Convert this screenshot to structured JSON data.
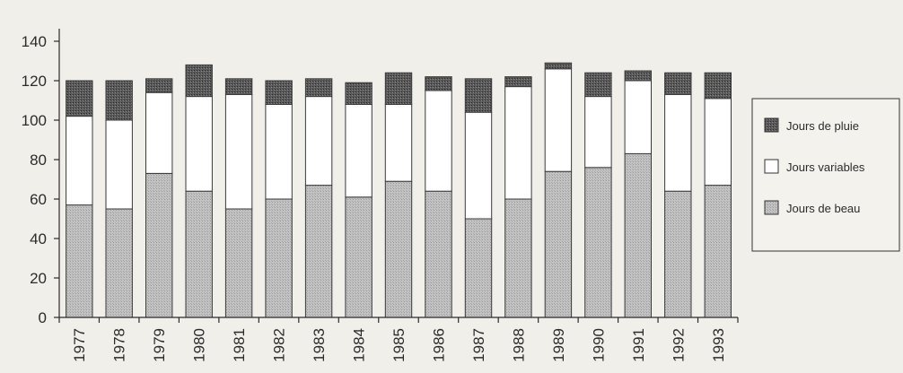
{
  "chart_data": {
    "type": "bar",
    "stacked": true,
    "categories": [
      "1977",
      "1978",
      "1979",
      "1980",
      "1981",
      "1982",
      "1983",
      "1984",
      "1985",
      "1986",
      "1987",
      "1988",
      "1989",
      "1990",
      "1991",
      "1992",
      "1993"
    ],
    "series": [
      {
        "name": "Jours de beau",
        "values": [
          57,
          55,
          73,
          64,
          55,
          60,
          67,
          61,
          69,
          64,
          50,
          60,
          74,
          76,
          83,
          64,
          67
        ],
        "color": "#b5b5b5"
      },
      {
        "name": "Jours variables",
        "values": [
          45,
          45,
          41,
          48,
          58,
          48,
          45,
          47,
          39,
          51,
          54,
          57,
          52,
          36,
          37,
          49,
          44
        ],
        "color": "#ffffff"
      },
      {
        "name": "Jours de pluie",
        "values": [
          18,
          20,
          7,
          16,
          8,
          12,
          9,
          11,
          16,
          7,
          17,
          5,
          3,
          12,
          5,
          11,
          13
        ],
        "color": "#4e4e4e"
      }
    ],
    "ylim": [
      0,
      140
    ],
    "yticks": [
      "0",
      "20",
      "40",
      "60",
      "80",
      "100",
      "120",
      "140"
    ],
    "legend": {
      "position": "right",
      "entries": [
        "Jours de pluie",
        "Jours variables",
        "Jours de beau"
      ]
    },
    "grid": false
  }
}
